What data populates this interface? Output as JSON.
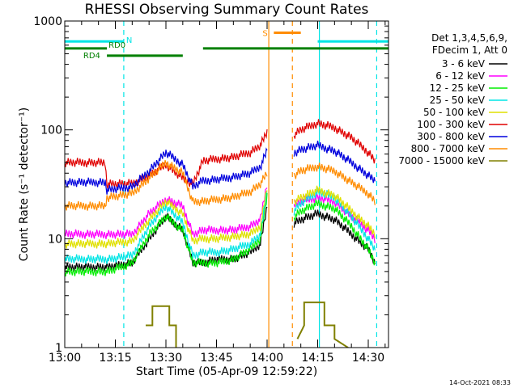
{
  "page": {
    "date_stamp": "14-Oct-2021 08:33"
  },
  "chart_data": {
    "type": "line",
    "title": "RHESSI Observing Summary Count Rates",
    "xlabel": "Start Time (05-Apr-09 12:59:22)",
    "ylabel": "Count Rate (s⁻¹ detector⁻¹)",
    "yscale": "log",
    "ylim": [
      1,
      1000
    ],
    "xlim_minutes": [
      0,
      96
    ],
    "x_ticks": [
      {
        "t": 0,
        "label": "13:00"
      },
      {
        "t": 15,
        "label": "13:15"
      },
      {
        "t": 30,
        "label": "13:30"
      },
      {
        "t": 45,
        "label": "13:45"
      },
      {
        "t": 60,
        "label": "14:00"
      },
      {
        "t": 75,
        "label": "14:15"
      },
      {
        "t": 90,
        "label": "14:30"
      }
    ],
    "y_ticks": [
      {
        "v": 1,
        "label": "1"
      },
      {
        "v": 10,
        "label": "10"
      },
      {
        "v": 100,
        "label": "100"
      },
      {
        "v": 1000,
        "label": "1000"
      }
    ],
    "legend": {
      "position": "right",
      "header": [
        "Det 1,3,4,5,6,9,",
        "FDecim 1, Att 0"
      ],
      "entries": [
        {
          "label": "3 - 6 keV",
          "color": "#000000"
        },
        {
          "label": "6 - 12 keV",
          "color": "#ff00ff"
        },
        {
          "label": "12 - 25 keV",
          "color": "#00ee00"
        },
        {
          "label": "25 - 50 keV",
          "color": "#00e5e5"
        },
        {
          "label": "50 - 100 keV",
          "color": "#e0e000"
        },
        {
          "label": "100 - 300 keV",
          "color": "#e00000"
        },
        {
          "label": "300 - 800 keV",
          "color": "#0000dd"
        },
        {
          "label": "800 - 7000 keV",
          "color": "#ff8c00"
        },
        {
          "label": "7000 - 15000 keV",
          "color": "#808000"
        }
      ]
    },
    "flags": [
      {
        "label": "N",
        "color": "#00e5e5",
        "segments": [
          [
            0,
            17.5
          ],
          [
            75,
            96
          ]
        ],
        "level": 650
      },
      {
        "label": "RD0",
        "color": "#008000",
        "segments": [
          [
            0,
            12.5
          ]
        ],
        "level": 560
      },
      {
        "label": "RD4",
        "color": "#008000",
        "segments": [
          [
            12.5,
            35
          ]
        ],
        "level": 480
      },
      {
        "label": "",
        "color": "#008000",
        "segments": [
          [
            41,
            96
          ]
        ],
        "level": 560
      },
      {
        "label": "S",
        "color": "#ff8c00",
        "segments": [
          [
            62,
            70
          ]
        ],
        "level": 780
      }
    ],
    "night_markers": [
      {
        "t": 17.5,
        "color": "#00e5e5",
        "style": "dashed"
      },
      {
        "t": 60.5,
        "color": "#ff8c00",
        "style": "solid"
      },
      {
        "t": 67.5,
        "color": "#ff8c00",
        "style": "dashed"
      },
      {
        "t": 75.5,
        "color": "#00e5e5",
        "style": "solid"
      },
      {
        "t": 92.5,
        "color": "#00e5e5",
        "style": "dashed"
      }
    ],
    "series": [
      {
        "name": "3 - 6 keV",
        "color": "#000000",
        "segments": [
          {
            "t": [
              0,
              10,
              13,
              20,
              25,
              30,
              35,
              38,
              41,
              45,
              50,
              55,
              58,
              60
            ],
            "v": [
              5.5,
              5.5,
              5.5,
              6,
              10,
              16,
              12,
              6,
              6,
              6.5,
              6.5,
              7.5,
              9,
              20
            ]
          },
          {
            "t": [
              68,
              70,
              75,
              80,
              85,
              90,
              92
            ],
            "v": [
              14,
              15,
              17,
              15,
              11,
              8,
              6
            ]
          }
        ]
      },
      {
        "name": "6 - 12 keV",
        "color": "#ff00ff",
        "segments": [
          {
            "t": [
              0,
              10,
              13,
              20,
              25,
              30,
              35,
              38,
              41,
              45,
              50,
              55,
              58,
              60
            ],
            "v": [
              11,
              11,
              11,
              11,
              17,
              23,
              20,
              11,
              12,
              12,
              12,
              13,
              15,
              32
            ]
          },
          {
            "t": [
              68,
              70,
              75,
              80,
              85,
              90,
              92
            ],
            "v": [
              20,
              22,
              24,
              22,
              16,
              12,
              10
            ]
          }
        ]
      },
      {
        "name": "12 - 25 keV",
        "color": "#00ee00",
        "segments": [
          {
            "t": [
              0,
              10,
              13,
              20,
              25,
              30,
              35,
              38,
              41,
              45,
              50,
              55,
              58,
              60
            ],
            "v": [
              5,
              5,
              5,
              6,
              11,
              16,
              12,
              6,
              6,
              6,
              6.5,
              8,
              10,
              25
            ]
          },
          {
            "t": [
              68,
              70,
              75,
              80,
              85,
              90,
              92
            ],
            "v": [
              16,
              18,
              21,
              19,
              13,
              8,
              6
            ]
          }
        ]
      },
      {
        "name": "25 - 50 keV",
        "color": "#00e5e5",
        "segments": [
          {
            "t": [
              0,
              10,
              13,
              20,
              25,
              30,
              35,
              38,
              41,
              45,
              50,
              55,
              58,
              60
            ],
            "v": [
              6.5,
              6.5,
              6.5,
              7,
              13,
              20,
              14,
              7,
              7.5,
              7.5,
              8,
              9,
              11,
              28
            ]
          },
          {
            "t": [
              68,
              70,
              75,
              80,
              85,
              90,
              92
            ],
            "v": [
              18,
              21,
              27,
              24,
              16,
              10,
              8
            ]
          }
        ]
      },
      {
        "name": "50 - 100 keV",
        "color": "#e0e000",
        "segments": [
          {
            "t": [
              0,
              10,
              13,
              20,
              25,
              30,
              35,
              38,
              41,
              45,
              50,
              55,
              58,
              60
            ],
            "v": [
              9,
              9,
              9,
              9.5,
              15,
              22,
              17,
              9.5,
              10,
              10,
              10.5,
              11,
              13,
              30
            ]
          },
          {
            "t": [
              68,
              70,
              75,
              80,
              85,
              90,
              92
            ],
            "v": [
              22,
              24,
              28,
              25,
              18,
              13,
              11
            ]
          }
        ]
      },
      {
        "name": "100 - 300 keV",
        "color": "#e00000",
        "segments": [
          {
            "t": [
              0,
              12,
              12.5,
              20,
              25,
              30,
              35,
              38,
              41,
              45,
              50,
              55,
              58,
              60
            ],
            "v": [
              50,
              50,
              32,
              32,
              38,
              48,
              36,
              32,
              52,
              54,
              56,
              62,
              72,
              95
            ]
          },
          {
            "t": [
              68,
              70,
              75,
              80,
              85,
              90,
              92
            ],
            "v": [
              90,
              100,
              115,
              105,
              85,
              62,
              52
            ]
          }
        ]
      },
      {
        "name": "300 - 800 keV",
        "color": "#0000dd",
        "segments": [
          {
            "t": [
              0,
              12,
              12.5,
              20,
              25,
              30,
              35,
              38,
              41,
              45,
              50,
              55,
              58,
              60
            ],
            "v": [
              33,
              33,
              28,
              30,
              42,
              62,
              48,
              30,
              34,
              35,
              37,
              40,
              46,
              65
            ]
          },
          {
            "t": [
              68,
              70,
              75,
              80,
              85,
              90,
              92
            ],
            "v": [
              62,
              66,
              72,
              64,
              50,
              38,
              34
            ]
          }
        ]
      },
      {
        "name": "800 - 7000 keV",
        "color": "#ff8c00",
        "segments": [
          {
            "t": [
              0,
              12,
              12.5,
              20,
              25,
              30,
              35,
              38,
              41,
              45,
              50,
              55,
              58,
              60
            ],
            "v": [
              20,
              20,
              24,
              26,
              36,
              50,
              40,
              22,
              22,
              23,
              24,
              27,
              32,
              40
            ]
          },
          {
            "t": [
              68,
              70,
              75,
              80,
              85,
              90,
              92
            ],
            "v": [
              38,
              42,
              46,
              42,
              33,
              26,
              22
            ]
          }
        ]
      },
      {
        "name": "7000 - 15000 keV",
        "color": "#808000",
        "segments": [
          {
            "t": [
              24,
              26,
              26,
              31,
              31,
              33,
              33
            ],
            "v": [
              1.6,
              1.6,
              2.4,
              2.4,
              1.6,
              1.6,
              1.0
            ]
          },
          {
            "t": [
              69,
              71,
              71,
              77,
              77,
              80,
              80,
              84
            ],
            "v": [
              1.2,
              1.6,
              2.6,
              2.6,
              1.6,
              1.6,
              1.2,
              1.0
            ]
          }
        ]
      }
    ]
  }
}
